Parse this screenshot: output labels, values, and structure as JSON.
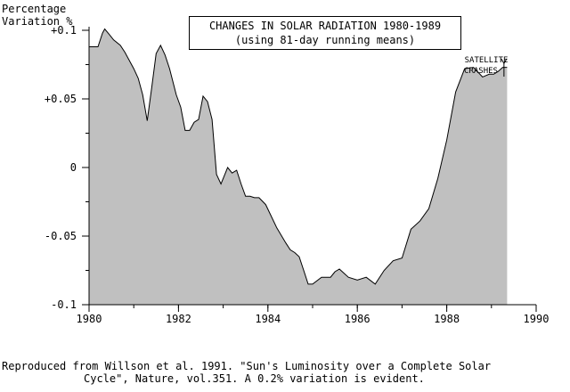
{
  "chart_data": {
    "type": "area",
    "title": "CHANGES IN SOLAR RADIATION 1980-1989",
    "subtitle": "(using 81-day running means)",
    "ylabel_line1": "Percentage",
    "ylabel_line2": "Variation %",
    "xlim": [
      1980,
      1990
    ],
    "ylim": [
      -0.1,
      0.1
    ],
    "x_ticks": [
      1980,
      1982,
      1984,
      1986,
      1988,
      1990
    ],
    "x_tick_labels": [
      "1980",
      "1982",
      "1984",
      "1986",
      "1988",
      "1990"
    ],
    "y_ticks": [
      0.1,
      0.05,
      0,
      -0.05,
      -0.1
    ],
    "y_tick_labels": [
      "+0.1",
      "+0.05",
      "0",
      "-0.05",
      "-0.1"
    ],
    "grid": false,
    "fill_color": "#c0c0c0",
    "series": [
      {
        "x": [
          1980.0,
          1980.2,
          1980.3,
          1980.35,
          1980.45,
          1980.55,
          1980.7,
          1980.8,
          1980.9,
          1981.0,
          1981.1,
          1981.2,
          1981.3,
          1981.4,
          1981.5,
          1981.6,
          1981.7,
          1981.8,
          1981.95,
          1982.05,
          1982.15,
          1982.25,
          1982.35,
          1982.45,
          1982.55,
          1982.65,
          1982.75,
          1982.85,
          1982.95,
          1983.05,
          1983.1,
          1983.2,
          1983.3,
          1983.4,
          1983.5,
          1983.6,
          1983.7,
          1983.8,
          1983.95,
          1984.2,
          1984.4,
          1984.5,
          1984.6,
          1984.7,
          1984.8,
          1984.9,
          1985.0,
          1985.2,
          1985.3,
          1985.4,
          1985.5,
          1985.6,
          1985.8,
          1986.0,
          1986.2,
          1986.4,
          1986.6,
          1986.8,
          1987.0,
          1987.2,
          1987.4,
          1987.6,
          1987.8,
          1988.0,
          1988.2,
          1988.4,
          1988.6,
          1988.8,
          1988.95,
          1989.05,
          1989.15,
          1989.25,
          1989.35
        ],
        "y": [
          0.088,
          0.088,
          0.098,
          0.101,
          0.097,
          0.093,
          0.089,
          0.084,
          0.078,
          0.072,
          0.065,
          0.053,
          0.034,
          0.058,
          0.083,
          0.089,
          0.082,
          0.072,
          0.053,
          0.044,
          0.027,
          0.027,
          0.033,
          0.035,
          0.052,
          0.048,
          0.035,
          -0.005,
          -0.012,
          -0.004,
          0.0,
          -0.004,
          -0.002,
          -0.012,
          -0.021,
          -0.021,
          -0.022,
          -0.022,
          -0.027,
          -0.044,
          -0.055,
          -0.06,
          -0.062,
          -0.065,
          -0.075,
          -0.085,
          -0.085,
          -0.08,
          -0.08,
          -0.08,
          -0.076,
          -0.074,
          -0.08,
          -0.082,
          -0.08,
          -0.085,
          -0.075,
          -0.068,
          -0.066,
          -0.045,
          -0.039,
          -0.03,
          -0.008,
          0.02,
          0.055,
          0.072,
          0.073,
          0.066,
          0.068,
          0.068,
          0.07,
          0.073,
          0.073
        ]
      }
    ],
    "annotation_line1": "SATELLITE",
    "annotation_line2": "CRASHES",
    "annotation_x": 1989.3,
    "annotation_y": 0.072
  },
  "caption_line1": "Reproduced from Willson et al. 1991. \"Sun's Luminosity over a Complete Solar",
  "caption_line2": "Cycle\", Nature, vol.351. A 0.2% variation is evident."
}
